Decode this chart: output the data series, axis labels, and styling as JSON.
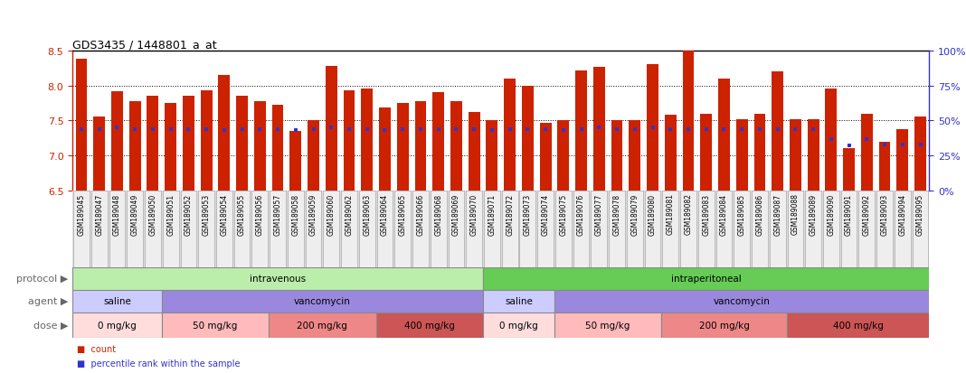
{
  "title": "GDS3435 / 1448801_a_at",
  "samples": [
    "GSM189045",
    "GSM189047",
    "GSM189048",
    "GSM189049",
    "GSM189050",
    "GSM189051",
    "GSM189052",
    "GSM189053",
    "GSM189054",
    "GSM189055",
    "GSM189056",
    "GSM189057",
    "GSM189058",
    "GSM189059",
    "GSM189060",
    "GSM189062",
    "GSM189063",
    "GSM189064",
    "GSM189065",
    "GSM189066",
    "GSM189068",
    "GSM189069",
    "GSM189070",
    "GSM189071",
    "GSM189072",
    "GSM189073",
    "GSM189074",
    "GSM189075",
    "GSM189076",
    "GSM189077",
    "GSM189078",
    "GSM189079",
    "GSM189080",
    "GSM189081",
    "GSM189082",
    "GSM189083",
    "GSM189084",
    "GSM189085",
    "GSM189086",
    "GSM189087",
    "GSM189088",
    "GSM189089",
    "GSM189090",
    "GSM189091",
    "GSM189092",
    "GSM189093",
    "GSM189094",
    "GSM189095"
  ],
  "expression": [
    8.38,
    7.55,
    7.92,
    7.78,
    7.85,
    7.75,
    7.85,
    7.93,
    8.15,
    7.85,
    7.78,
    7.72,
    7.35,
    7.5,
    8.28,
    7.93,
    7.95,
    7.68,
    7.75,
    7.78,
    7.9,
    7.78,
    7.62,
    7.5,
    8.1,
    8.0,
    7.47,
    7.5,
    8.22,
    8.26,
    7.5,
    7.5,
    8.3,
    7.58,
    8.65,
    7.6,
    8.1,
    7.52,
    7.6,
    8.2,
    7.52,
    7.52,
    7.95,
    7.1,
    7.6,
    7.2,
    7.38,
    7.55
  ],
  "percentile": [
    44,
    44,
    45,
    44,
    44,
    44,
    44,
    44,
    43,
    44,
    44,
    44,
    43,
    44,
    45,
    44,
    44,
    43,
    44,
    44,
    44,
    44,
    44,
    43,
    44,
    44,
    44,
    43,
    44,
    45,
    44,
    44,
    45,
    44,
    44,
    44,
    44,
    44,
    44,
    44,
    44,
    44,
    37,
    32,
    37,
    33,
    33,
    33
  ],
  "ylim_left": [
    6.5,
    8.5
  ],
  "ylim_right": [
    0,
    100
  ],
  "bar_color": "#cc2200",
  "percentile_color": "#3333cc",
  "bg_color": "#ffffff",
  "left_axis_color": "#cc2200",
  "right_axis_color": "#3333cc",
  "protocol_groups": [
    {
      "label": "intravenous",
      "start": 0,
      "end": 23,
      "color": "#bbeeaa"
    },
    {
      "label": "intraperitoneal",
      "start": 23,
      "end": 48,
      "color": "#66cc55"
    }
  ],
  "agent_groups": [
    {
      "label": "saline",
      "start": 0,
      "end": 5,
      "color": "#ccccff"
    },
    {
      "label": "vancomycin",
      "start": 5,
      "end": 23,
      "color": "#9988dd"
    },
    {
      "label": "saline",
      "start": 23,
      "end": 27,
      "color": "#ccccff"
    },
    {
      "label": "vancomycin",
      "start": 27,
      "end": 48,
      "color": "#9988dd"
    }
  ],
  "dose_groups": [
    {
      "label": "0 mg/kg",
      "start": 0,
      "end": 5,
      "color": "#ffdddd"
    },
    {
      "label": "50 mg/kg",
      "start": 5,
      "end": 11,
      "color": "#ffbbbb"
    },
    {
      "label": "200 mg/kg",
      "start": 11,
      "end": 17,
      "color": "#ee8888"
    },
    {
      "label": "400 mg/kg",
      "start": 17,
      "end": 23,
      "color": "#cc5555"
    },
    {
      "label": "0 mg/kg",
      "start": 23,
      "end": 27,
      "color": "#ffdddd"
    },
    {
      "label": "50 mg/kg",
      "start": 27,
      "end": 33,
      "color": "#ffbbbb"
    },
    {
      "label": "200 mg/kg",
      "start": 33,
      "end": 40,
      "color": "#ee8888"
    },
    {
      "label": "400 mg/kg",
      "start": 40,
      "end": 48,
      "color": "#cc5555"
    }
  ],
  "legend_count_label": "count",
  "legend_percentile_label": "percentile rank within the sample",
  "title_fontsize": 9,
  "sample_fontsize": 5.5,
  "annot_fontsize": 7.5,
  "row_label_fontsize": 8,
  "ytick_fontsize": 8
}
